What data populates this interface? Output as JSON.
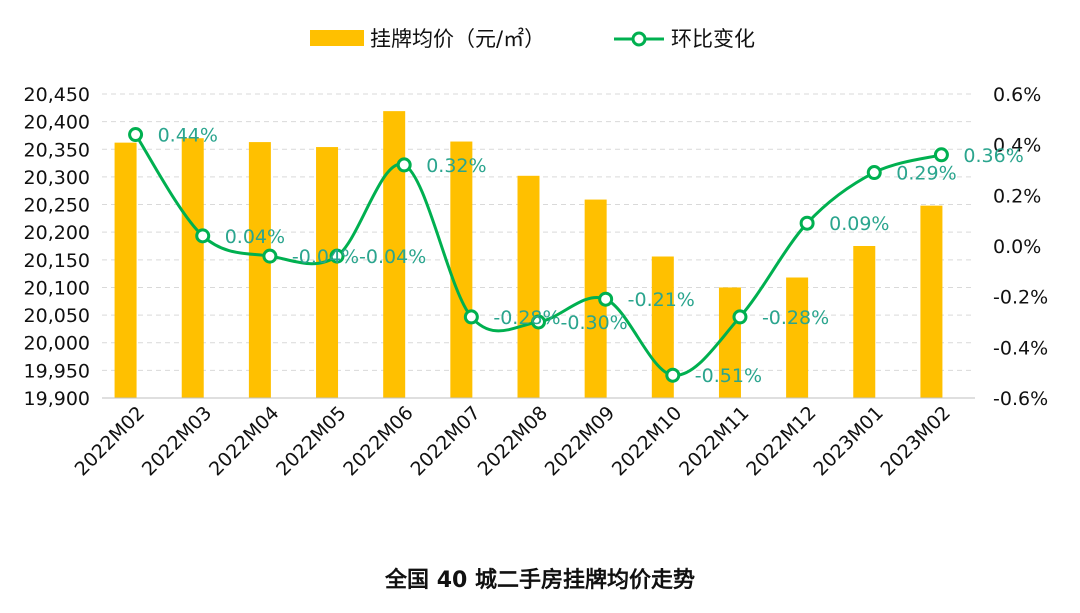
{
  "caption": "全国 40 城二手房挂牌均价走势",
  "chart_data": {
    "type": "bar",
    "categories": [
      "2022M02",
      "2022M03",
      "2022M04",
      "2022M05",
      "2022M06",
      "2022M07",
      "2022M08",
      "2022M09",
      "2022M10",
      "2022M11",
      "2022M12",
      "2023M01",
      "2023M02"
    ],
    "series": [
      {
        "name": "挂牌均价（元/㎡）",
        "type": "bar",
        "axis": "left",
        "color": "#FFC000",
        "values": [
          20362,
          20370,
          20363,
          20354,
          20419,
          20364,
          20302,
          20259,
          20156,
          20100,
          20118,
          20175,
          20248
        ]
      },
      {
        "name": "环比变化",
        "type": "line",
        "axis": "right",
        "color": "#00B050",
        "values": [
          0.44,
          0.04,
          -0.04,
          -0.04,
          0.32,
          -0.28,
          -0.3,
          -0.21,
          -0.51,
          -0.28,
          0.09,
          0.29,
          0.36
        ],
        "labels": [
          "0.44%",
          "0.04%",
          "-0.04%",
          "-0.04%",
          "0.32%",
          "-0.28%",
          "-0.30%",
          "-0.21%",
          "-0.51%",
          "-0.28%",
          "0.09%",
          "0.29%",
          "0.36%"
        ]
      }
    ],
    "ylim_left": [
      19900,
      20450
    ],
    "yticks_left": [
      "20,450",
      "20,400",
      "20,350",
      "20,300",
      "20,250",
      "20,200",
      "20,150",
      "20,100",
      "20,050",
      "20,000",
      "19,950",
      "19,900"
    ],
    "ylim_right": [
      -0.6,
      0.6
    ],
    "yticks_right": [
      "0.6%",
      "0.4%",
      "0.2%",
      "0.0%",
      "-0.2%",
      "-0.4%",
      "-0.6%"
    ],
    "grid": true,
    "legend_position": "top",
    "label_color": "#2BA58E"
  }
}
